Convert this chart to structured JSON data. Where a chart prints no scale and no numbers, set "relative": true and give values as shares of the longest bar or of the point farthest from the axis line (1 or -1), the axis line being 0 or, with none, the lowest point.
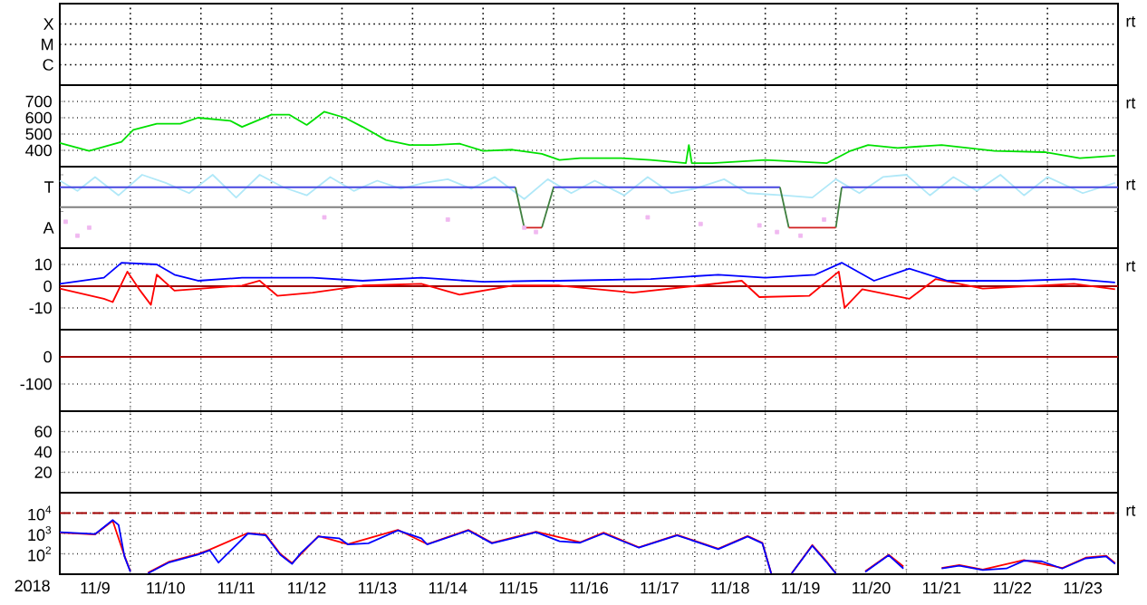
{
  "chart_data": [
    {
      "type": "other",
      "annotations": [
        "X",
        "M",
        "C",
        "rt"
      ]
    },
    {
      "type": "line",
      "xlim": [
        "2018-11-09",
        "2018-11-24"
      ],
      "xticks": [
        {
          "value": "2018-11-10",
          "label": null
        },
        {
          "value": "2018-11-11",
          "label": null
        },
        {
          "value": "2018-11-12",
          "label": null
        },
        {
          "value": "2018-11-13",
          "label": null
        },
        {
          "value": "2018-11-14",
          "label": null
        },
        {
          "value": "2018-11-15",
          "label": null
        },
        {
          "value": "2018-11-16",
          "label": null
        },
        {
          "value": "2018-11-17",
          "label": null
        },
        {
          "value": "2018-11-18",
          "label": null
        },
        {
          "value": "2018-11-19",
          "label": null
        },
        {
          "value": "2018-11-20",
          "label": null
        },
        {
          "value": "2018-11-21",
          "label": null
        },
        {
          "value": "2018-11-22",
          "label": null
        },
        {
          "value": "2018-11-23",
          "label": null
        }
      ],
      "ylim": [
        300,
        800
      ],
      "yticks": [
        700,
        600,
        500,
        400
      ],
      "grid": true,
      "tick_labels": "y",
      "annotations": [
        "rt"
      ],
      "series": [
        {
          "color": "#00e000",
          "x": [
            "2018-11-09T00:00",
            "2018-11-09T10:00",
            "2018-11-09T21:00",
            "2018-11-10T01:00",
            "2018-11-10T09:00",
            "2018-11-10T17:00",
            "2018-11-10T23:00",
            "2018-11-11T10:00",
            "2018-11-11T14:00",
            "2018-11-12T00:00",
            "2018-11-12T06:00",
            "2018-11-12T12:00",
            "2018-11-12T18:00",
            "2018-11-13T01:00",
            "2018-11-13T07:00",
            "2018-11-13T15:00",
            "2018-11-13T23:00",
            "2018-11-14T07:00",
            "2018-11-14T16:00",
            "2018-11-15T00:00",
            "2018-11-15T10:00",
            "2018-11-15T20:00",
            "2018-11-16T02:00",
            "2018-11-16T09:00",
            "2018-11-16T23:00",
            "2018-11-17T09:00",
            "2018-11-17T21:00",
            "2018-11-17T22:00",
            "2018-11-17T23:00",
            "2018-11-18T06:00",
            "2018-11-19T00:00",
            "2018-11-19T21:00",
            "2018-11-20T05:00",
            "2018-11-20T11:00",
            "2018-11-20T21:00",
            "2018-11-21T12:00",
            "2018-11-22T06:00",
            "2018-11-22T23:00",
            "2018-11-23T11:00",
            "2018-11-23T23:00"
          ],
          "values": [
            445,
            397,
            452,
            526,
            563,
            563,
            600,
            581,
            544,
            619,
            619,
            556,
            637,
            600,
            544,
            463,
            433,
            433,
            441,
            397,
            404,
            378,
            341,
            352,
            352,
            341,
            322,
            433,
            322,
            322,
            341,
            322,
            397,
            433,
            415,
            433,
            397,
            389,
            352,
            367
          ]
        }
      ]
    },
    {
      "type": "line",
      "xlim": [
        "2018-11-09",
        "2018-11-24"
      ],
      "xticks": [
        {
          "value": "2018-11-10",
          "label": null
        },
        {
          "value": "2018-11-11",
          "label": null
        },
        {
          "value": "2018-11-12",
          "label": null
        },
        {
          "value": "2018-11-13",
          "label": null
        },
        {
          "value": "2018-11-14",
          "label": null
        },
        {
          "value": "2018-11-15",
          "label": null
        },
        {
          "value": "2018-11-16",
          "label": null
        },
        {
          "value": "2018-11-17",
          "label": null
        },
        {
          "value": "2018-11-18",
          "label": null
        },
        {
          "value": "2018-11-19",
          "label": null
        },
        {
          "value": "2018-11-20",
          "label": null
        },
        {
          "value": "2018-11-21",
          "label": null
        },
        {
          "value": "2018-11-22",
          "label": null
        },
        {
          "value": "2018-11-23",
          "label": null
        }
      ],
      "relative": true,
      "grid": "x",
      "tick_labels": false,
      "annotations": [
        "T",
        "A",
        "rt"
      ],
      "ref_lines": [
        {
          "axis": "y",
          "value": 0.56,
          "color": "#808080"
        }
      ],
      "series": [
        {
          "color": "#b0e8f8",
          "x": [
            "2018-11-09T00:00",
            "2018-11-09T06:00",
            "2018-11-09T12:00",
            "2018-11-09T20:00",
            "2018-11-10T04:00",
            "2018-11-10T12:00",
            "2018-11-10T20:00",
            "2018-11-11T04:00",
            "2018-11-11T12:00",
            "2018-11-11T20:00",
            "2018-11-12T04:00",
            "2018-11-12T12:00",
            "2018-11-12T20:00",
            "2018-11-13T04:00",
            "2018-11-13T12:00",
            "2018-11-13T20:00",
            "2018-11-14T04:00",
            "2018-11-14T12:00",
            "2018-11-14T20:00",
            "2018-11-15T04:00",
            "2018-11-15T14:00",
            "2018-11-15T22:00",
            "2018-11-16T06:00",
            "2018-11-16T14:00",
            "2018-11-17T00:00",
            "2018-11-17T08:00",
            "2018-11-17T16:00",
            "2018-11-18T00:00",
            "2018-11-18T10:00",
            "2018-11-18T18:00",
            "2018-11-19T06:00",
            "2018-11-19T16:00",
            "2018-11-20T00:00",
            "2018-11-20T08:00",
            "2018-11-20T16:00",
            "2018-11-21T00:00",
            "2018-11-21T08:00",
            "2018-11-21T16:00",
            "2018-11-22T00:00",
            "2018-11-22T08:00",
            "2018-11-22T16:00",
            "2018-11-23T00:00",
            "2018-11-23T12:00",
            "2018-11-23T23:00"
          ],
          "values": [
            0.92,
            0.78,
            0.97,
            0.72,
            1,
            0.89,
            0.75,
            1,
            0.69,
            1,
            0.83,
            0.72,
            0.97,
            0.78,
            0.92,
            0.81,
            0.89,
            0.94,
            0.81,
            0.97,
            0.67,
            0.94,
            0.75,
            0.92,
            0.72,
            0.97,
            0.75,
            0.81,
            0.94,
            0.75,
            0.72,
            0.69,
            0.94,
            0.75,
            0.97,
            1,
            0.72,
            0.97,
            0.78,
            1,
            0.72,
            0.97,
            0.75,
            0.89
          ]
        },
        {
          "type": "scatter",
          "marker": "square",
          "color": "#f0b8f0",
          "x": [
            "2018-11-09T02:00",
            "2018-11-09T06:00",
            "2018-11-09T10:00",
            "2018-11-12T18:00",
            "2018-11-14T12:00",
            "2018-11-15T14:00",
            "2018-11-15T18:00",
            "2018-11-17T08:00",
            "2018-11-18T02:00",
            "2018-11-18T22:00",
            "2018-11-19T04:00",
            "2018-11-19T12:00",
            "2018-11-19T20:00"
          ],
          "values": [
            0.36,
            0.17,
            0.28,
            0.42,
            0.39,
            0.28,
            0.22,
            0.42,
            0.33,
            0.31,
            0.22,
            0.17,
            0.39
          ]
        },
        {
          "color": "#4848e0",
          "x": [
            "2018-11-09T00:00",
            "2018-11-15T11:00",
            "2018-11-15T12:00",
            "2018-11-16T00:00",
            "2018-11-19T05:00",
            "2018-11-19T06:00",
            "2018-11-20T02:00",
            "2018-11-24T00:00"
          ],
          "values": [
            0.83,
            0.83,
            null,
            0.83,
            0.83,
            null,
            0.83,
            0.83
          ]
        },
        {
          "color": "#408040",
          "x": [
            "2018-11-15T11:00",
            "2018-11-15T14:00",
            "2018-11-15T17:00",
            "2018-11-15T20:00",
            "2018-11-16T00:00",
            "2018-11-18T12:00",
            "2018-11-19T05:00",
            "2018-11-19T08:00",
            "2018-11-19T16:00",
            "2018-11-20T00:00",
            "2018-11-20T02:00"
          ],
          "values": [
            0.83,
            0.28,
            null,
            0.28,
            0.83,
            null,
            0.83,
            0.28,
            null,
            0.28,
            0.83
          ]
        },
        {
          "color": "#d02020",
          "x": [
            "2018-11-15T14:00",
            "2018-11-15T20:00",
            "2018-11-17T00:00",
            "2018-11-19T08:00",
            "2018-11-20T00:00"
          ],
          "values": [
            0.28,
            0.28,
            null,
            0.28,
            0.28
          ]
        }
      ]
    },
    {
      "type": "line",
      "xlim": [
        "2018-11-09",
        "2018-11-24"
      ],
      "xticks": [
        {
          "value": "2018-11-10",
          "label": null
        },
        {
          "value": "2018-11-11",
          "label": null
        },
        {
          "value": "2018-11-12",
          "label": null
        },
        {
          "value": "2018-11-13",
          "label": null
        },
        {
          "value": "2018-11-14",
          "label": null
        },
        {
          "value": "2018-11-15",
          "label": null
        },
        {
          "value": "2018-11-16",
          "label": null
        },
        {
          "value": "2018-11-17",
          "label": null
        },
        {
          "value": "2018-11-18",
          "label": null
        },
        {
          "value": "2018-11-19",
          "label": null
        },
        {
          "value": "2018-11-20",
          "label": null
        },
        {
          "value": "2018-11-21",
          "label": null
        },
        {
          "value": "2018-11-22",
          "label": null
        },
        {
          "value": "2018-11-23",
          "label": null
        }
      ],
      "ylim": [
        -20,
        17.5
      ],
      "yticks": [
        10,
        0,
        -10
      ],
      "grid": true,
      "tick_labels": "y",
      "annotations": [
        "rt"
      ],
      "ref_lines": [
        {
          "axis": "y",
          "value": 0,
          "color": "#a00000"
        }
      ],
      "series": [
        {
          "color": "#ff0000",
          "x": [
            "2018-11-09T00:00",
            "2018-11-09T15:00",
            "2018-11-09T18:00",
            "2018-11-09T23:00",
            "2018-11-10T03:00",
            "2018-11-10T07:00",
            "2018-11-10T09:00",
            "2018-11-10T15:00",
            "2018-11-11T14:00",
            "2018-11-11T20:00",
            "2018-11-12T02:00",
            "2018-11-12T14:00",
            "2018-11-13T07:00",
            "2018-11-14T03:00",
            "2018-11-14T16:00",
            "2018-11-15T10:00",
            "2018-11-16T02:00",
            "2018-11-17T03:00",
            "2018-11-18T16:00",
            "2018-11-18T22:00",
            "2018-11-19T15:00",
            "2018-11-20T01:00",
            "2018-11-20T03:00",
            "2018-11-20T09:00",
            "2018-11-21T01:00",
            "2018-11-21T10:00",
            "2018-11-22T02:00",
            "2018-11-23T09:00",
            "2018-11-23T23:00"
          ],
          "values": [
            -1.1,
            -5.8,
            -7.3,
            6.7,
            -1.4,
            -8.6,
            5.3,
            -2,
            0.3,
            2.5,
            -4.4,
            -3,
            0.3,
            1.1,
            -3.9,
            0.3,
            0.3,
            -3,
            2.5,
            -5,
            -4.4,
            6.7,
            -10,
            -1.4,
            -5.8,
            3.3,
            -1.1,
            1.1,
            -1.4
          ]
        },
        {
          "color": "#0000ff",
          "x": [
            "2018-11-09T00:00",
            "2018-11-09T15:00",
            "2018-11-09T21:00",
            "2018-11-10T09:00",
            "2018-11-10T15:00",
            "2018-11-10T23:00",
            "2018-11-11T14:00",
            "2018-11-12T14:00",
            "2018-11-13T07:00",
            "2018-11-14T03:00",
            "2018-11-15T00:00",
            "2018-11-15T20:00",
            "2018-11-16T02:00",
            "2018-11-17T09:00",
            "2018-11-18T08:00",
            "2018-11-19T00:00",
            "2018-11-19T17:00",
            "2018-11-20T02:00",
            "2018-11-20T13:00",
            "2018-11-21T01:00",
            "2018-11-21T14:00",
            "2018-11-22T14:00",
            "2018-11-23T09:00",
            "2018-11-23T23:00"
          ],
          "values": [
            1.1,
            3.9,
            10.8,
            10,
            5.3,
            2.5,
            3.9,
            3.9,
            2.5,
            3.9,
            2,
            2.5,
            2.5,
            3.3,
            5.3,
            3.9,
            5.3,
            10.8,
            2.5,
            8.1,
            2.5,
            2.5,
            3.3,
            1.7
          ]
        }
      ]
    },
    {
      "type": "line",
      "xlim": [
        "2018-11-09",
        "2018-11-24"
      ],
      "xticks": [
        {
          "value": "2018-11-10",
          "label": null
        },
        {
          "value": "2018-11-11",
          "label": null
        },
        {
          "value": "2018-11-12",
          "label": null
        },
        {
          "value": "2018-11-13",
          "label": null
        },
        {
          "value": "2018-11-14",
          "label": null
        },
        {
          "value": "2018-11-15",
          "label": null
        },
        {
          "value": "2018-11-16",
          "label": null
        },
        {
          "value": "2018-11-17",
          "label": null
        },
        {
          "value": "2018-11-18",
          "label": null
        },
        {
          "value": "2018-11-19",
          "label": null
        },
        {
          "value": "2018-11-20",
          "label": null
        },
        {
          "value": "2018-11-21",
          "label": null
        },
        {
          "value": "2018-11-22",
          "label": null
        },
        {
          "value": "2018-11-23",
          "label": null
        }
      ],
      "ylim": [
        -200,
        100
      ],
      "yticks": [
        0,
        -100
      ],
      "grid": true,
      "tick_labels": "y",
      "ref_lines": [
        {
          "axis": "y",
          "value": 0,
          "color": "#a00000"
        }
      ]
    },
    {
      "type": "line",
      "xlim": [
        "2018-11-09",
        "2018-11-24"
      ],
      "xticks": [
        {
          "value": "2018-11-10",
          "label": null
        },
        {
          "value": "2018-11-11",
          "label": null
        },
        {
          "value": "2018-11-12",
          "label": null
        },
        {
          "value": "2018-11-13",
          "label": null
        },
        {
          "value": "2018-11-14",
          "label": null
        },
        {
          "value": "2018-11-15",
          "label": null
        },
        {
          "value": "2018-11-16",
          "label": null
        },
        {
          "value": "2018-11-17",
          "label": null
        },
        {
          "value": "2018-11-18",
          "label": null
        },
        {
          "value": "2018-11-19",
          "label": null
        },
        {
          "value": "2018-11-20",
          "label": null
        },
        {
          "value": "2018-11-21",
          "label": null
        },
        {
          "value": "2018-11-22",
          "label": null
        },
        {
          "value": "2018-11-23",
          "label": null
        }
      ],
      "ylim": [
        0,
        80
      ],
      "yticks": [
        60,
        40,
        20
      ],
      "grid": true,
      "tick_labels": "y"
    },
    {
      "type": "line",
      "log": true,
      "xlabel": "2018",
      "xlim": [
        "2018-11-09",
        "2018-11-24"
      ],
      "xticks": [
        {
          "value": "2018-11-10",
          "label": null
        },
        {
          "value": "2018-11-11",
          "label": null
        },
        {
          "value": "2018-11-12",
          "label": null
        },
        {
          "value": "2018-11-13",
          "label": null
        },
        {
          "value": "2018-11-14",
          "label": null
        },
        {
          "value": "2018-11-15",
          "label": null
        },
        {
          "value": "2018-11-16",
          "label": null
        },
        {
          "value": "2018-11-17",
          "label": null
        },
        {
          "value": "2018-11-18",
          "label": null
        },
        {
          "value": "2018-11-19",
          "label": null
        },
        {
          "value": "2018-11-20",
          "label": null
        },
        {
          "value": "2018-11-21",
          "label": null
        },
        {
          "value": "2018-11-22",
          "label": null
        },
        {
          "value": "2018-11-23",
          "label": null
        },
        {
          "value": "2018-11-09T12:00",
          "label": "11/9"
        },
        {
          "value": "2018-11-10T12:00",
          "label": "11/10"
        },
        {
          "value": "2018-11-11T12:00",
          "label": "11/11"
        },
        {
          "value": "2018-11-12T12:00",
          "label": "11/12"
        },
        {
          "value": "2018-11-13T12:00",
          "label": "11/13"
        },
        {
          "value": "2018-11-14T12:00",
          "label": "11/14"
        },
        {
          "value": "2018-11-15T12:00",
          "label": "11/15"
        },
        {
          "value": "2018-11-16T12:00",
          "label": "11/16"
        },
        {
          "value": "2018-11-17T12:00",
          "label": "11/17"
        },
        {
          "value": "2018-11-18T12:00",
          "label": "11/18"
        },
        {
          "value": "2018-11-19T12:00",
          "label": "11/19"
        },
        {
          "value": "2018-11-20T12:00",
          "label": "11/20"
        },
        {
          "value": "2018-11-21T12:00",
          "label": "11/21"
        },
        {
          "value": "2018-11-22T12:00",
          "label": "11/22"
        },
        {
          "value": "2018-11-23T12:00",
          "label": "11/23"
        }
      ],
      "ylim": [
        10,
        100000
      ],
      "yticks": [
        {
          "value": 10000,
          "label": "10$^{4}$"
        },
        {
          "value": 1000,
          "label": "10$^{3}$"
        },
        {
          "value": 100,
          "label": "10$^{2}$"
        }
      ],
      "grid": true,
      "annotations": [
        "rt"
      ],
      "ref_lines": [
        {
          "axis": "y",
          "value": 10000,
          "color": "#a00000",
          "line_style": "dashed"
        }
      ],
      "series": [
        {
          "color": "#ff0000",
          "x": [
            "2018-11-09T00:00",
            "2018-11-09T12:00",
            "2018-11-09T18:00",
            "2018-11-09T22:00",
            "2018-11-10T00:00",
            "2018-11-10T02:00",
            "2018-11-10T06:00",
            "2018-11-10T13:00",
            "2018-11-10T23:00",
            "2018-11-11T03:00",
            "2018-11-11T16:00",
            "2018-11-11T22:00",
            "2018-11-12T03:00",
            "2018-11-12T07:00",
            "2018-11-12T16:00",
            "2018-11-13T02:00",
            "2018-11-13T19:00",
            "2018-11-14T05:00",
            "2018-11-14T19:00",
            "2018-11-15T03:00",
            "2018-11-15T18:00",
            "2018-11-16T09:00",
            "2018-11-16T17:00",
            "2018-11-17T05:00",
            "2018-11-17T18:00",
            "2018-11-18T08:00",
            "2018-11-18T18:00",
            "2018-11-18T23:00",
            "2018-11-19T02:00",
            "2018-11-19T05:00",
            "2018-11-19T09:00",
            "2018-11-19T16:00",
            "2018-11-19T21:00",
            "2018-11-20T00:00",
            "2018-11-20T04:00",
            "2018-11-20T10:00",
            "2018-11-20T18:00",
            "2018-11-20T23:00",
            "2018-11-21T04:00",
            "2018-11-21T12:00",
            "2018-11-21T18:00",
            "2018-11-22T02:00",
            "2018-11-22T16:00",
            "2018-11-23T05:00",
            "2018-11-23T13:00",
            "2018-11-23T20:00",
            "2018-11-23T23:00"
          ],
          "values": [
            1100,
            900,
            4200,
            80,
            14,
            null,
            12,
            40,
            100,
            160,
            1050,
            900,
            100,
            35,
            750,
            300,
            1500,
            300,
            1500,
            350,
            1200,
            370,
            1100,
            210,
            850,
            180,
            750,
            350,
            11,
            null,
            11,
            270,
            40,
            11,
            null,
            14,
            90,
            24,
            null,
            20,
            28,
            17,
            50,
            20,
            65,
            80,
            35
          ]
        },
        {
          "color": "#0000ff",
          "x": [
            "2018-11-09T00:00",
            "2018-11-09T12:00",
            "2018-11-09T18:00",
            "2018-11-09T20:00",
            "2018-11-09T22:00",
            "2018-11-10T00:00",
            "2018-11-10T02:00",
            "2018-11-10T06:00",
            "2018-11-10T13:00",
            "2018-11-10T23:00",
            "2018-11-11T03:00",
            "2018-11-11T06:00",
            "2018-11-11T16:00",
            "2018-11-11T22:00",
            "2018-11-12T03:00",
            "2018-11-12T07:00",
            "2018-11-12T10:00",
            "2018-11-12T16:00",
            "2018-11-12T23:00",
            "2018-11-13T02:00",
            "2018-11-13T09:00",
            "2018-11-13T19:00",
            "2018-11-14T03:00",
            "2018-11-14T05:00",
            "2018-11-14T19:00",
            "2018-11-15T03:00",
            "2018-11-15T10:00",
            "2018-11-15T18:00",
            "2018-11-16T02:00",
            "2018-11-16T09:00",
            "2018-11-16T17:00",
            "2018-11-17T05:00",
            "2018-11-17T18:00",
            "2018-11-18T08:00",
            "2018-11-18T18:00",
            "2018-11-18T23:00",
            "2018-11-19T02:00",
            "2018-11-19T05:00",
            "2018-11-19T09:00",
            "2018-11-19T16:00",
            "2018-11-19T21:00",
            "2018-11-20T00:00",
            "2018-11-20T04:00",
            "2018-11-20T10:00",
            "2018-11-20T18:00",
            "2018-11-20T23:00",
            "2018-11-21T04:00",
            "2018-11-21T12:00",
            "2018-11-21T18:00",
            "2018-11-22T02:00",
            "2018-11-22T10:00",
            "2018-11-22T16:00",
            "2018-11-22T22:00",
            "2018-11-23T05:00",
            "2018-11-23T13:00",
            "2018-11-23T20:00",
            "2018-11-23T23:00"
          ],
          "values": [
            1150,
            930,
            4500,
            2600,
            74,
            13.5,
            null,
            11,
            37,
            91,
            150,
            37,
            1000,
            810,
            91,
            32,
            110,
            710,
            580,
            290,
            330,
            1400,
            580,
            290,
            1400,
            330,
            580,
            1150,
            410,
            350,
            1000,
            200,
            810,
            170,
            710,
            330,
            11,
            null,
            11,
            250,
            37,
            11,
            null,
            13,
            85,
            19,
            null,
            19,
            26,
            16,
            19,
            46,
            43,
            19,
            60,
            74,
            32
          ]
        }
      ]
    }
  ]
}
